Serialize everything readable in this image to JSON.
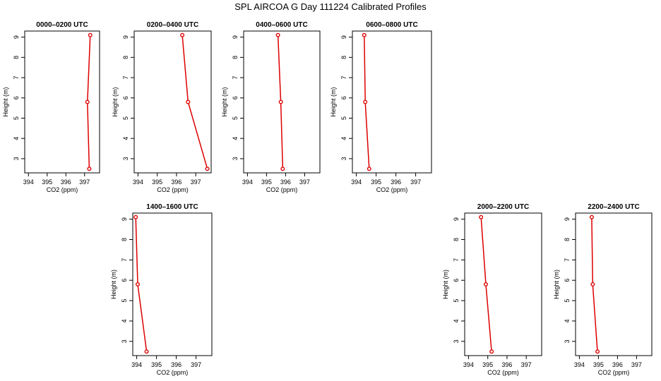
{
  "page": {
    "title": "SPL AIRCOA G  Day 111224  Calibrated Profiles"
  },
  "colors": {
    "profile_line": "#dd0000",
    "axis": "#000000"
  },
  "chart_data": [
    {
      "type": "line",
      "title": "0000–0200 UTC",
      "xlabel": "CO2 (ppm)",
      "ylabel": "Height (m)",
      "xlim": [
        393.8,
        397.8
      ],
      "ylim": [
        2.3,
        9.3
      ],
      "xticks": [
        394,
        395,
        396,
        397
      ],
      "yticks": [
        3,
        4,
        5,
        6,
        7,
        8,
        9
      ],
      "grid": false,
      "series": [
        {
          "x": [
            397.3,
            397.15,
            397.25
          ],
          "y": [
            9.1,
            5.8,
            2.5
          ]
        }
      ]
    },
    {
      "type": "line",
      "title": "0200–0400 UTC",
      "xlabel": "CO2 (ppm)",
      "ylabel": "Height (m)",
      "xlim": [
        393.8,
        397.8
      ],
      "ylim": [
        2.3,
        9.3
      ],
      "xticks": [
        394,
        395,
        396,
        397
      ],
      "yticks": [
        3,
        4,
        5,
        6,
        7,
        8,
        9
      ],
      "grid": false,
      "series": [
        {
          "x": [
            396.3,
            396.6,
            397.6
          ],
          "y": [
            9.1,
            5.8,
            2.5
          ]
        }
      ]
    },
    {
      "type": "line",
      "title": "0400–0600 UTC",
      "xlabel": "CO2 (ppm)",
      "ylabel": "Height (m)",
      "xlim": [
        393.8,
        397.8
      ],
      "ylim": [
        2.3,
        9.3
      ],
      "xticks": [
        394,
        395,
        396,
        397
      ],
      "yticks": [
        3,
        4,
        5,
        6,
        7,
        8,
        9
      ],
      "grid": false,
      "series": [
        {
          "x": [
            395.6,
            395.75,
            395.85
          ],
          "y": [
            9.1,
            5.8,
            2.5
          ]
        }
      ]
    },
    {
      "type": "line",
      "title": "0600–0800 UTC",
      "xlabel": "CO2 (ppm)",
      "ylabel": "Height (m)",
      "xlim": [
        393.8,
        397.8
      ],
      "ylim": [
        2.3,
        9.3
      ],
      "xticks": [
        394,
        395,
        396,
        397
      ],
      "yticks": [
        3,
        4,
        5,
        6,
        7,
        8,
        9
      ],
      "grid": false,
      "series": [
        {
          "x": [
            394.4,
            394.45,
            394.65
          ],
          "y": [
            9.1,
            5.8,
            2.5
          ]
        }
      ]
    },
    {
      "type": "line",
      "title": "1400–1600 UTC",
      "xlabel": "CO2 (ppm)",
      "ylabel": "Height (m)",
      "xlim": [
        393.8,
        397.8
      ],
      "ylim": [
        2.3,
        9.3
      ],
      "xticks": [
        394,
        395,
        396,
        397
      ],
      "yticks": [
        3,
        4,
        5,
        6,
        7,
        8,
        9
      ],
      "grid": false,
      "series": [
        {
          "x": [
            393.95,
            394.05,
            394.5
          ],
          "y": [
            9.1,
            5.8,
            2.5
          ]
        }
      ]
    },
    {
      "type": "line",
      "title": "2000–2200 UTC",
      "xlabel": "CO2 (ppm)",
      "ylabel": "Height (m)",
      "xlim": [
        393.8,
        397.8
      ],
      "ylim": [
        2.3,
        9.3
      ],
      "xticks": [
        394,
        395,
        396,
        397
      ],
      "yticks": [
        3,
        4,
        5,
        6,
        7,
        8,
        9
      ],
      "grid": false,
      "series": [
        {
          "x": [
            394.65,
            394.9,
            395.2
          ],
          "y": [
            9.1,
            5.8,
            2.5
          ]
        }
      ]
    },
    {
      "type": "line",
      "title": "2200–2400 UTC",
      "xlabel": "CO2 (ppm)",
      "ylabel": "Height (m)",
      "xlim": [
        393.8,
        397.8
      ],
      "ylim": [
        2.3,
        9.3
      ],
      "xticks": [
        394,
        395,
        396,
        397
      ],
      "yticks": [
        3,
        4,
        5,
        6,
        7,
        8,
        9
      ],
      "grid": false,
      "series": [
        {
          "x": [
            394.65,
            394.7,
            394.95
          ],
          "y": [
            9.1,
            5.8,
            2.5
          ]
        }
      ]
    }
  ]
}
